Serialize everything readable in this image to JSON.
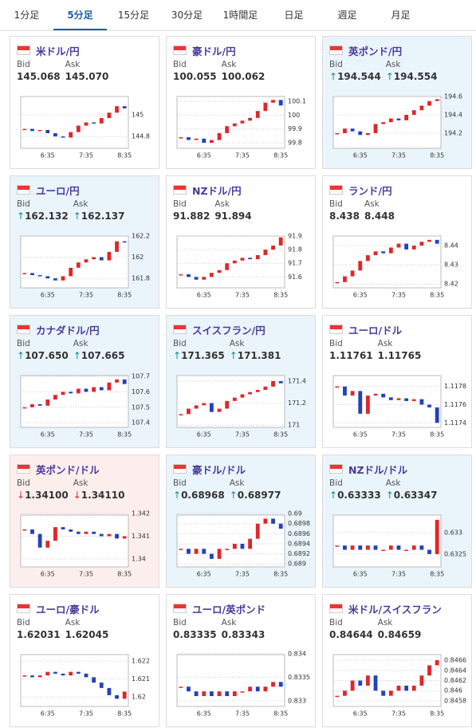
{
  "tabs": [
    "1分足",
    "5分足",
    "15分足",
    "30分足",
    "1時間足",
    "日足",
    "週足",
    "月足"
  ],
  "active_tab": 1,
  "cards": [
    {
      "pair": "米ドル/円",
      "bid_label": "Bid",
      "ask_label": "Ask",
      "bid": "145.068",
      "ask": "145.070",
      "background": "#ffffff",
      "chart": {
        "type": "candlestick",
        "x": [
          null,
          null,
          null,
          "6:35",
          null,
          null,
          null,
          null,
          "7:35",
          null,
          null,
          null,
          null,
          "8:35"
        ],
        "closes": [
          144.87,
          144.85,
          144.86,
          144.83,
          144.8,
          144.79,
          144.84,
          144.9,
          144.93,
          144.92,
          144.97,
          145.02,
          145.08,
          145.06
        ],
        "ylim": [
          144.69,
          145.17
        ],
        "yticks": [
          145,
          144.8
        ]
      }
    },
    {
      "pair": "豪ドル/円",
      "bid_label": "Bid",
      "ask_label": "Ask",
      "bid": "100.055",
      "ask": "100.062",
      "background": "#ffffff",
      "chart": {
        "type": "candlestick",
        "x": [
          null,
          null,
          null,
          "6:35",
          null,
          null,
          null,
          null,
          "7:35",
          null,
          null,
          null,
          null,
          "8:35"
        ],
        "closes": [
          99.84,
          99.82,
          99.83,
          99.8,
          99.82,
          99.87,
          99.92,
          99.94,
          99.96,
          99.98,
          100.03,
          100.09,
          100.11,
          100.07
        ],
        "ylim": [
          99.76,
          100.135
        ],
        "yticks": [
          100.1,
          100,
          99.9,
          99.8
        ]
      }
    },
    {
      "pair": "英ポンド/円",
      "bid_label": "Bid",
      "ask_label": "Ask",
      "bid_arrow": "↑",
      "ask_arrow": "↑",
      "arrow_color": "#1a8a9a",
      "bid": "194.544",
      "ask": "194.554",
      "background": "#eaf4fb",
      "chart": {
        "type": "candlestick",
        "x": [
          null,
          null,
          null,
          "6:35",
          null,
          null,
          null,
          null,
          "7:35",
          null,
          null,
          null,
          null,
          "8:35"
        ],
        "closes": [
          194.2,
          194.25,
          194.22,
          194.18,
          194.2,
          194.3,
          194.32,
          194.36,
          194.34,
          194.4,
          194.45,
          194.5,
          194.55,
          194.57
        ],
        "ylim": [
          194.035,
          194.6
        ],
        "yticks": [
          194.6,
          194.4,
          194.2
        ]
      }
    },
    {
      "pair": "ユーロ/円",
      "bid_label": "Bid",
      "ask_label": "Ask",
      "bid_arrow": "↑",
      "ask_arrow": "↑",
      "arrow_color": "#1a8a9a",
      "bid": "162.132",
      "ask": "162.137",
      "background": "#eaf4fb",
      "chart": {
        "type": "candlestick",
        "x": [
          null,
          null,
          null,
          "6:35",
          null,
          null,
          null,
          null,
          "7:35",
          null,
          null,
          null,
          null,
          "8:35"
        ],
        "closes": [
          161.85,
          161.83,
          161.82,
          161.8,
          161.78,
          161.82,
          161.9,
          161.95,
          161.98,
          162,
          161.97,
          162.05,
          162.15,
          162.14
        ],
        "ylim": [
          161.71,
          162.2
        ],
        "yticks": [
          162.2,
          162,
          161.8
        ]
      }
    },
    {
      "pair": "NZドル/円",
      "bid_label": "Bid",
      "ask_label": "Ask",
      "bid": "91.882",
      "ask": "91.894",
      "background": "#ffffff",
      "chart": {
        "type": "candlestick",
        "x": [
          null,
          null,
          null,
          "6:35",
          null,
          null,
          null,
          null,
          "7:35",
          null,
          null,
          null,
          null,
          "8:35"
        ],
        "closes": [
          91.62,
          91.6,
          91.58,
          91.6,
          91.63,
          91.65,
          91.7,
          91.72,
          91.74,
          91.73,
          91.76,
          91.8,
          91.83,
          91.89
        ],
        "ylim": [
          91.52,
          91.9
        ],
        "yticks": [
          91.9,
          91.8,
          91.7,
          91.6
        ]
      }
    },
    {
      "pair": "ランド/円",
      "bid_label": "Bid",
      "ask_label": "Ask",
      "bid": "8.438",
      "ask": "8.448",
      "background": "#ffffff",
      "chart": {
        "type": "candlestick",
        "x": [
          null,
          null,
          null,
          "6:35",
          null,
          null,
          null,
          null,
          "7:35",
          null,
          null,
          null,
          null,
          "8:35"
        ],
        "closes": [
          8.421,
          8.424,
          8.427,
          8.432,
          8.435,
          8.437,
          8.436,
          8.439,
          8.441,
          8.438,
          8.44,
          8.442,
          8.443,
          8.441
        ],
        "ylim": [
          8.418,
          8.445
        ],
        "yticks": [
          8.44,
          8.43,
          8.42
        ]
      }
    },
    {
      "pair": "カナダドル/円",
      "bid_label": "Bid",
      "ask_label": "Ask",
      "bid_arrow": "↑",
      "ask_arrow": "↑",
      "arrow_color": "#1a8a9a",
      "bid": "107.650",
      "ask": "107.665",
      "background": "#eaf4fb",
      "chart": {
        "type": "candlestick",
        "x": [
          null,
          null,
          null,
          "6:35",
          null,
          null,
          null,
          null,
          "7:35",
          null,
          null,
          null,
          null,
          "8:35"
        ],
        "closes": [
          107.5,
          107.52,
          107.51,
          107.55,
          107.58,
          107.6,
          107.59,
          107.62,
          107.6,
          107.63,
          107.61,
          107.66,
          107.68,
          107.65
        ],
        "ylim": [
          107.37,
          107.705
        ],
        "yticks": [
          107.7,
          107.6,
          107.5,
          107.4
        ]
      }
    },
    {
      "pair": "スイスフラン/円",
      "bid_label": "Bid",
      "ask_label": "Ask",
      "bid_arrow": "↑",
      "ask_arrow": "↑",
      "arrow_color": "#1a8a9a",
      "bid": "171.365",
      "ask": "171.381",
      "background": "#eaf4fb",
      "chart": {
        "type": "candlestick",
        "x": [
          null,
          null,
          null,
          "6:35",
          null,
          null,
          null,
          null,
          "7:35",
          null,
          null,
          null,
          null,
          "8:35"
        ],
        "closes": [
          171.1,
          171.15,
          171.18,
          171.2,
          171.12,
          171.15,
          171.22,
          171.25,
          171.28,
          171.3,
          171.32,
          171.35,
          171.4,
          171.38
        ],
        "ylim": [
          170.98,
          171.45
        ],
        "yticks": [
          171.4,
          171.2,
          171
        ]
      }
    },
    {
      "pair": "ユーロ/ドル",
      "bid_label": "Bid",
      "ask_label": "Ask",
      "bid": "1.11761",
      "ask": "1.11765",
      "background": "#ffffff",
      "chart": {
        "type": "candlestick",
        "x": [
          null,
          null,
          null,
          "6:35",
          null,
          null,
          null,
          null,
          "7:35",
          null,
          null,
          null,
          null,
          "8:35"
        ],
        "closes": [
          1.1178,
          1.1177,
          1.11775,
          1.1175,
          1.1177,
          1.11772,
          1.11768,
          1.11765,
          1.11767,
          1.11764,
          1.11766,
          1.1176,
          1.11757,
          1.1174
        ],
        "ylim": [
          1.11735,
          1.11792
        ],
        "yticks": [
          1.1178,
          1.1176,
          1.1174
        ]
      }
    },
    {
      "pair": "英ポンド/ドル",
      "bid_label": "Bid",
      "ask_label": "Ask",
      "bid_arrow": "↓",
      "ask_arrow": "↓",
      "arrow_color": "#d0342c",
      "bid": "1.34100",
      "ask": "1.34110",
      "background": "#fdeeee",
      "chart": {
        "type": "candlestick",
        "x": [
          null,
          null,
          null,
          "6:35",
          null,
          null,
          null,
          null,
          "7:35",
          null,
          null,
          null,
          null,
          "8:35"
        ],
        "closes": [
          1.3413,
          1.3411,
          1.3405,
          1.3408,
          1.3414,
          1.3413,
          1.3412,
          1.3411,
          1.3412,
          1.3411,
          1.341,
          1.3411,
          1.3409,
          1.341
        ],
        "ylim": [
          1.33965,
          1.34193
        ],
        "yticks": [
          1.342,
          1.341,
          1.34
        ]
      }
    },
    {
      "pair": "豪ドル/ドル",
      "bid_label": "Bid",
      "ask_label": "Ask",
      "bid_arrow": "↑",
      "ask_arrow": "↑",
      "arrow_color": "#1a8a9a",
      "bid": "0.68968",
      "ask": "0.68977",
      "background": "#eaf4fb",
      "chart": {
        "type": "candlestick",
        "x": [
          null,
          null,
          null,
          "6:35",
          null,
          null,
          null,
          null,
          "7:35",
          null,
          null,
          null,
          null,
          "8:35"
        ],
        "closes": [
          0.6893,
          0.6892,
          0.6893,
          0.6892,
          0.6891,
          0.6893,
          0.6893,
          0.6894,
          0.6893,
          0.6895,
          0.6898,
          0.6899,
          0.6898,
          0.6897
        ],
        "ylim": [
          0.68894,
          0.68997
        ],
        "yticks": [
          0.69,
          0.6898,
          0.6896,
          0.6894,
          0.6892,
          0.689
        ]
      }
    },
    {
      "pair": "NZドル/ドル",
      "bid_label": "Bid",
      "ask_label": "Ask",
      "bid_arrow": "↑",
      "ask_arrow": "↑",
      "arrow_color": "#1a8a9a",
      "bid": "0.63333",
      "ask": "0.63347",
      "background": "#eaf4fb",
      "chart": {
        "type": "candlestick",
        "x": [
          null,
          null,
          null,
          "6:35",
          null,
          null,
          null,
          null,
          "7:35",
          null,
          null,
          null,
          null,
          "8:35"
        ],
        "closes": [
          0.6327,
          0.6326,
          0.6327,
          0.6326,
          0.6327,
          0.6326,
          0.6326,
          0.6327,
          0.6326,
          0.6326,
          0.6327,
          0.6326,
          0.6325,
          0.6333
        ],
        "ylim": [
          0.6322,
          0.63341
        ],
        "yticks": [
          0.633,
          0.6325
        ]
      }
    },
    {
      "pair": "ユーロ/豪ドル",
      "bid_label": "Bid",
      "ask_label": "Ask",
      "bid": "1.62031",
      "ask": "1.62045",
      "background": "#ffffff",
      "chart": {
        "type": "candlestick",
        "x": [
          null,
          null,
          null,
          "6:35",
          null,
          null,
          null,
          null,
          "7:35",
          null,
          null,
          null,
          null,
          "8:35"
        ],
        "closes": [
          1.6212,
          1.6211,
          1.6212,
          1.6214,
          1.6213,
          1.6212,
          1.6214,
          1.6213,
          1.6211,
          1.6208,
          1.6205,
          1.6201,
          1.6199,
          1.6203
        ],
        "ylim": [
          1.61947,
          1.62236
        ],
        "yticks": [
          1.622,
          1.621,
          1.62
        ]
      }
    },
    {
      "pair": "ユーロ/英ポンド",
      "bid_label": "Bid",
      "ask_label": "Ask",
      "bid": "0.83335",
      "ask": "0.83343",
      "background": "#ffffff",
      "chart": {
        "type": "candlestick",
        "x": [
          null,
          null,
          null,
          "6:35",
          null,
          null,
          null,
          null,
          "7:35",
          null,
          null,
          null,
          null,
          "8:35"
        ],
        "closes": [
          0.8333,
          0.8332,
          0.8331,
          0.8332,
          0.8331,
          0.8332,
          0.8331,
          0.8332,
          0.8332,
          0.8333,
          0.8332,
          0.8333,
          0.8334,
          0.8333
        ],
        "ylim": [
          0.83288,
          0.83398
        ],
        "yticks": [
          0.834,
          0.8335,
          0.833
        ]
      }
    },
    {
      "pair": "米ドル/スイスフラン",
      "bid_label": "Bid",
      "ask_label": "Ask",
      "bid": "0.84644",
      "ask": "0.84659",
      "background": "#ffffff",
      "chart": {
        "type": "candlestick",
        "x": [
          null,
          null,
          null,
          "6:35",
          null,
          null,
          null,
          null,
          "7:35",
          null,
          null,
          null,
          null,
          "8:35"
        ],
        "closes": [
          0.8459,
          0.846,
          0.8462,
          0.8461,
          0.8463,
          0.846,
          0.8459,
          0.846,
          0.8461,
          0.846,
          0.8461,
          0.8463,
          0.8465,
          0.8466
        ],
        "ylim": [
          0.84569,
          0.84671
        ],
        "yticks": [
          0.8466,
          0.8464,
          0.8462,
          0.846,
          0.8458
        ]
      }
    }
  ]
}
